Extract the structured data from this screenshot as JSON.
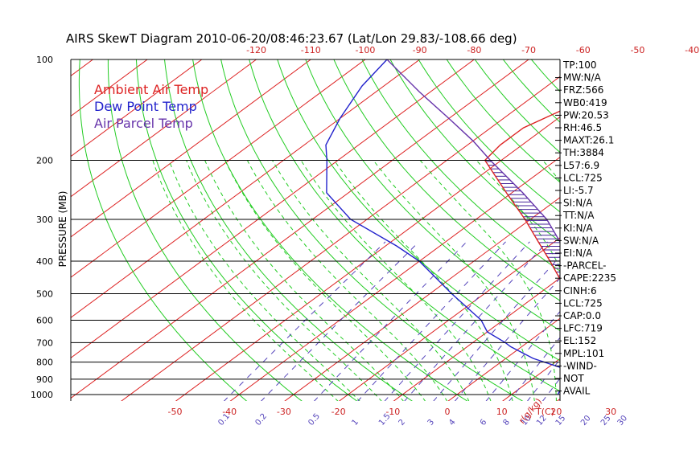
{
  "chart_data": {
    "type": "line",
    "title": "AIRS SkewT Diagram 2010-06-20/08:46:23.67 (Lat/Lon 29.83/-108.66 deg)",
    "ylabel": "PRESSURE (MB)",
    "xlabel_bottom_unit": "T(C)",
    "mixing_ratio_unit": "r(g/kg)",
    "ylim": [
      100,
      1000
    ],
    "y_scale": "log",
    "y_ticks": [
      "100",
      "200",
      "300",
      "400",
      "500",
      "600",
      "700",
      "800",
      "900",
      "1000"
    ],
    "x_ticks_top": [
      "-120",
      "-110",
      "-100",
      "-90",
      "-80",
      "-70",
      "-60",
      "-50",
      "-40"
    ],
    "x_ticks_bottom": [
      "-50",
      "-40",
      "-30",
      "-20",
      "-10",
      "0",
      "10",
      "20",
      "30"
    ],
    "mixing_ratio_labels": [
      "0.1",
      "0.2",
      "0.5",
      "1",
      "1.5",
      "2",
      "3",
      "4",
      "6",
      "8",
      "10",
      "12",
      "15",
      "20",
      "25",
      "30"
    ],
    "legend": [
      {
        "label": "Ambient Air Temp",
        "color": "#dd2222"
      },
      {
        "label": "Dew Point Temp",
        "color": "#2222cc"
      },
      {
        "label": "Air Parcel Temp",
        "color": "#6633aa"
      }
    ],
    "series": [
      {
        "name": "Ambient Air Temp",
        "color": "#dd2222",
        "pressure": [
          1000,
          850,
          780,
          720,
          700,
          650,
          600,
          550,
          500,
          450,
          400,
          350,
          300,
          250,
          200,
          180,
          160,
          140,
          120,
          100
        ],
        "temp": [
          29,
          24,
          18,
          14,
          11,
          8,
          5,
          1,
          -4,
          -10,
          -16,
          -23,
          -31,
          -41,
          -53,
          -54,
          -54,
          -51,
          -45,
          -38
        ]
      },
      {
        "name": "Dew Point Temp",
        "color": "#2222cc",
        "pressure": [
          1000,
          850,
          780,
          720,
          700,
          650,
          600,
          500,
          400,
          360,
          300,
          250,
          200,
          180,
          150,
          120,
          100
        ],
        "temp": [
          18.5,
          15,
          5,
          -2,
          -4,
          -10,
          -14,
          -26,
          -40,
          -48,
          -63,
          -74,
          -82,
          -86,
          -90,
          -94,
          -96
        ]
      },
      {
        "name": "Air Parcel Temp",
        "color": "#6633aa",
        "pressure": [
          1000,
          850,
          725,
          700,
          600,
          500,
          400,
          350,
          300,
          250,
          200,
          175,
          150,
          125,
          100
        ],
        "temp": [
          29,
          24,
          13.5,
          13,
          7,
          -1,
          -12,
          -19,
          -27,
          -38,
          -52,
          -60,
          -70,
          -82,
          -96
        ]
      }
    ],
    "indices": [
      "TP:100",
      "MW:N/A",
      "FRZ:566",
      "WB0:419",
      "PW:20.53",
      "RH:46.5",
      "MAXT:26.1",
      "TH:3884",
      "L57:6.9",
      "LCL:725",
      "LI:-5.7",
      "SI:N/A",
      "TT:N/A",
      "KI:N/A",
      "SW:N/A",
      "EI:N/A",
      "-PARCEL-",
      "CAPE:2235",
      "CINH:6",
      "LCL:725",
      "CAP:0.0",
      "LFC:719",
      "EL:152",
      "MPL:101",
      "-WIND-",
      "NOT",
      "AVAIL"
    ]
  },
  "colors": {
    "isotherm": "#dd2222",
    "dry_adiabat": "#22cc22",
    "moist_adiabat": "#22cc22",
    "mixing_ratio": "#5544bb",
    "isobar": "#000000",
    "cape_hatch": "#442299",
    "text": "#000000"
  }
}
